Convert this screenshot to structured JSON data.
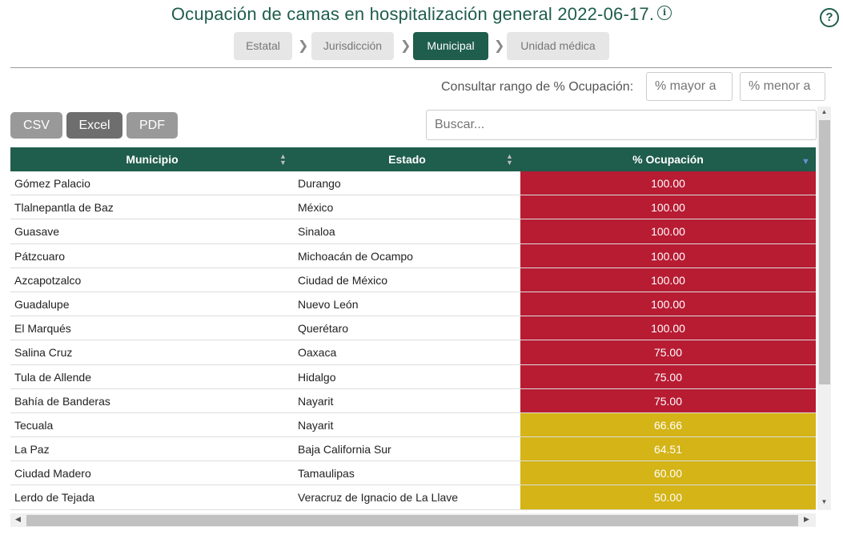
{
  "header": {
    "title": "Ocupación de camas en hospitalización general 2022-06-17.",
    "info_glyph": "i",
    "help_glyph": "?"
  },
  "breadcrumbs": [
    {
      "label": "Estatal"
    },
    {
      "label": "Jurisdicción"
    },
    {
      "label": "Municipal"
    },
    {
      "label": "Unidad médica"
    }
  ],
  "breadcrumb_separator": "❯",
  "range": {
    "label": "Consultar rango de % Ocupación:",
    "min_placeholder": "% mayor a",
    "max_placeholder": "% menor a"
  },
  "export": {
    "csv": "CSV",
    "excel": "Excel",
    "pdf": "PDF"
  },
  "search": {
    "placeholder": "Buscar..."
  },
  "table": {
    "columns": [
      "Municipio",
      "Estado",
      "% Ocupación"
    ],
    "rows": [
      {
        "municipio": "Gómez Palacio",
        "estado": "Durango",
        "ocupacion": "100.00"
      },
      {
        "municipio": "Tlalnepantla de Baz",
        "estado": "México",
        "ocupacion": "100.00"
      },
      {
        "municipio": "Guasave",
        "estado": "Sinaloa",
        "ocupacion": "100.00"
      },
      {
        "municipio": "Pátzcuaro",
        "estado": "Michoacán de Ocampo",
        "ocupacion": "100.00"
      },
      {
        "municipio": "Azcapotzalco",
        "estado": "Ciudad de México",
        "ocupacion": "100.00"
      },
      {
        "municipio": "Guadalupe",
        "estado": "Nuevo León",
        "ocupacion": "100.00"
      },
      {
        "municipio": "El Marqués",
        "estado": "Querétaro",
        "ocupacion": "100.00"
      },
      {
        "municipio": "Salina Cruz",
        "estado": "Oaxaca",
        "ocupacion": "75.00"
      },
      {
        "municipio": "Tula de Allende",
        "estado": "Hidalgo",
        "ocupacion": "75.00"
      },
      {
        "municipio": "Bahía de Banderas",
        "estado": "Nayarit",
        "ocupacion": "75.00"
      },
      {
        "municipio": "Tecuala",
        "estado": "Nayarit",
        "ocupacion": "66.66"
      },
      {
        "municipio": "La Paz",
        "estado": "Baja California Sur",
        "ocupacion": "64.51"
      },
      {
        "municipio": "Ciudad Madero",
        "estado": "Tamaulipas",
        "ocupacion": "60.00"
      },
      {
        "municipio": "Lerdo de Tejada",
        "estado": "Veracruz de Ignacio de La Llave",
        "ocupacion": "50.00"
      }
    ]
  },
  "colors": {
    "brand": "#1f5d4c",
    "high": "#b71c33",
    "medium": "#d4b416"
  }
}
